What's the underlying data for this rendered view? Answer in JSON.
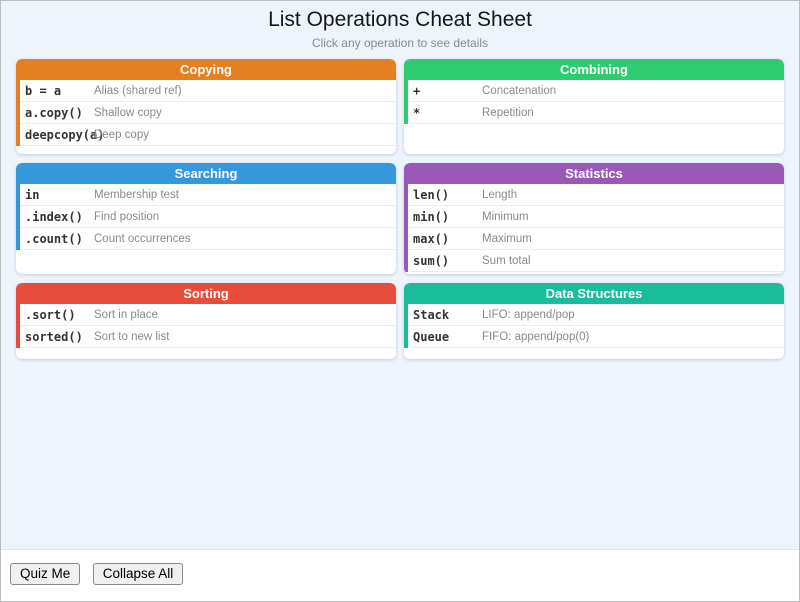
{
  "page": {
    "title": "List Operations Cheat Sheet",
    "subtitle": "Click any operation to see details"
  },
  "cards": [
    {
      "id": "copying",
      "title": "Copying",
      "color": "#e67e22",
      "rows": [
        {
          "code": "b = a",
          "desc": "Alias (shared ref)"
        },
        {
          "code": "a.copy()",
          "desc": "Shallow copy"
        },
        {
          "code": "deepcopy(a)",
          "desc": "Deep copy"
        }
      ]
    },
    {
      "id": "combining",
      "title": "Combining",
      "color": "#2ecc71",
      "rows": [
        {
          "code": "+",
          "desc": "Concatenation"
        },
        {
          "code": "*",
          "desc": "Repetition"
        }
      ]
    },
    {
      "id": "searching",
      "title": "Searching",
      "color": "#3498db",
      "rows": [
        {
          "code": "in",
          "desc": "Membership test"
        },
        {
          "code": ".index()",
          "desc": "Find position"
        },
        {
          "code": ".count()",
          "desc": "Count occurrences"
        }
      ]
    },
    {
      "id": "statistics",
      "title": "Statistics",
      "color": "#9b59b6",
      "rows": [
        {
          "code": "len()",
          "desc": "Length"
        },
        {
          "code": "min()",
          "desc": "Minimum"
        },
        {
          "code": "max()",
          "desc": "Maximum"
        },
        {
          "code": "sum()",
          "desc": "Sum total"
        }
      ]
    },
    {
      "id": "sorting",
      "title": "Sorting",
      "color": "#e74c3c",
      "rows": [
        {
          "code": ".sort()",
          "desc": "Sort in place"
        },
        {
          "code": "sorted()",
          "desc": "Sort to new list"
        }
      ]
    },
    {
      "id": "data-structures",
      "title": "Data Structures",
      "color": "#1abc9c",
      "rows": [
        {
          "code": "Stack",
          "desc": "LIFO: append/pop"
        },
        {
          "code": "Queue",
          "desc": "FIFO: append/pop(0)"
        }
      ]
    }
  ],
  "footer": {
    "quiz_button": "Quiz Me",
    "collapse_button": "Collapse All"
  }
}
